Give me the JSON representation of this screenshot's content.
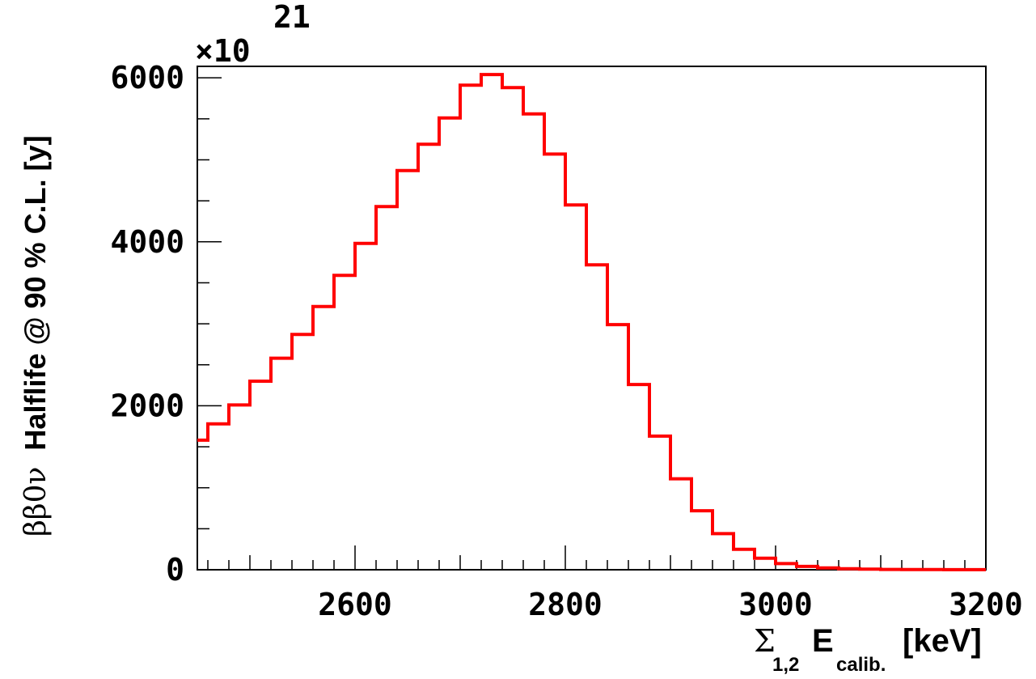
{
  "chart_data": {
    "type": "line",
    "style": "step-histogram",
    "series_color": "#ff0000",
    "xlabel": {
      "sigma": "Σ",
      "sub": "1,2",
      "main": "E",
      "sub2": "calib.",
      "unit": "[keV]"
    },
    "ylabel": {
      "greek": "ββ0ν",
      "text": "Halflife @ 90 % C.L. [y]"
    },
    "y_multiplier": {
      "prefix": "×10",
      "exponent": "21"
    },
    "xlim": [
      2450,
      3200
    ],
    "ylim": [
      0,
      6140
    ],
    "x_ticks": [
      "2600",
      "2800",
      "3000",
      "3200"
    ],
    "y_ticks": [
      "0",
      "2000",
      "4000",
      "6000"
    ],
    "bin_edges": [
      2450,
      2460,
      2480,
      2500,
      2520,
      2540,
      2560,
      2580,
      2600,
      2620,
      2640,
      2660,
      2680,
      2700,
      2720,
      2740,
      2760,
      2780,
      2800,
      2820,
      2840,
      2860,
      2880,
      2900,
      2920,
      2940,
      2960,
      2980,
      3000,
      3020,
      3040,
      3060,
      3080,
      3100,
      3120,
      3140,
      3160,
      3180,
      3200
    ],
    "values": [
      1580,
      1780,
      2010,
      2300,
      2580,
      2870,
      3210,
      3590,
      3980,
      4430,
      4870,
      5190,
      5510,
      5910,
      6040,
      5880,
      5560,
      5070,
      4450,
      3720,
      2990,
      2260,
      1630,
      1110,
      720,
      440,
      250,
      140,
      75,
      40,
      22,
      12,
      7,
      4,
      3,
      2,
      1,
      1
    ],
    "grid": false,
    "legend": "none"
  }
}
